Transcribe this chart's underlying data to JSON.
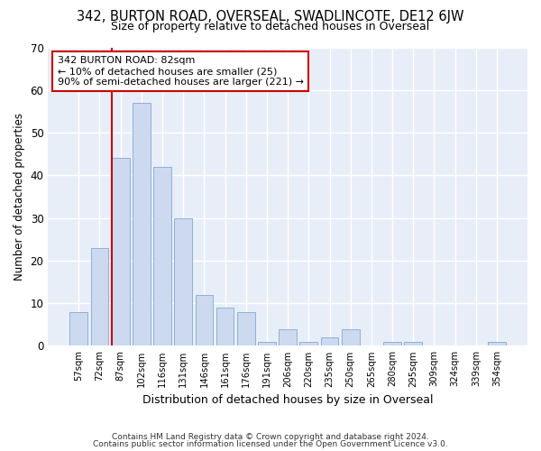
{
  "title": "342, BURTON ROAD, OVERSEAL, SWADLINCOTE, DE12 6JW",
  "subtitle": "Size of property relative to detached houses in Overseal",
  "xlabel": "Distribution of detached houses by size in Overseal",
  "ylabel": "Number of detached properties",
  "bar_color": "#ccd9ee",
  "bar_edge_color": "#8fb0d8",
  "categories": [
    "57sqm",
    "72sqm",
    "87sqm",
    "102sqm",
    "116sqm",
    "131sqm",
    "146sqm",
    "161sqm",
    "176sqm",
    "191sqm",
    "206sqm",
    "220sqm",
    "235sqm",
    "250sqm",
    "265sqm",
    "280sqm",
    "295sqm",
    "309sqm",
    "324sqm",
    "339sqm",
    "354sqm"
  ],
  "values": [
    8,
    23,
    44,
    57,
    42,
    30,
    12,
    9,
    8,
    1,
    4,
    1,
    2,
    4,
    0,
    1,
    1,
    0,
    0,
    0,
    1
  ],
  "ylim": [
    0,
    70
  ],
  "yticks": [
    0,
    10,
    20,
    30,
    40,
    50,
    60,
    70
  ],
  "annotation_title": "342 BURTON ROAD: 82sqm",
  "annotation_line1": "← 10% of detached houses are smaller (25)",
  "annotation_line2": "90% of semi-detached houses are larger (221) →",
  "footnote1": "Contains HM Land Registry data © Crown copyright and database right 2024.",
  "footnote2": "Contains public sector information licensed under the Open Government Licence v3.0.",
  "bg_color": "#ffffff",
  "plot_bg_color": "#e8eef8",
  "grid_color": "#ffffff",
  "red_line_color": "#cc0000",
  "red_line_bar_index": 2
}
